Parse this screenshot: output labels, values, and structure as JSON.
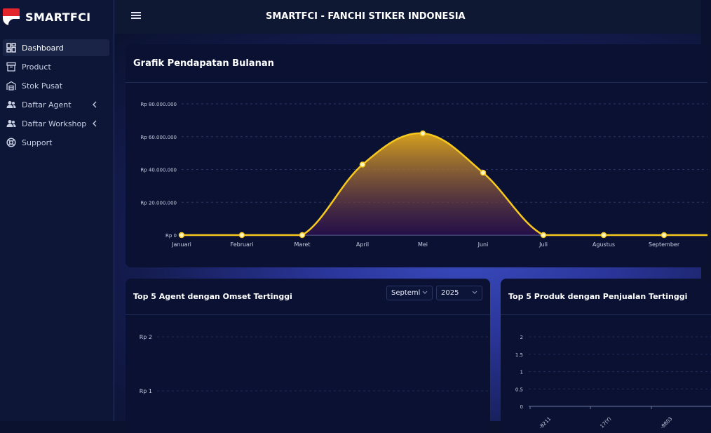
{
  "app": {
    "brand": "SMARTFCI",
    "title": "SMARTFCI - FANCHI STIKER INDONESIA"
  },
  "sidebar": {
    "items": [
      {
        "label": "Dashboard",
        "icon": "dashboard-icon"
      },
      {
        "label": "Product",
        "icon": "archive-icon"
      },
      {
        "label": "Stok Pusat",
        "icon": "warehouse-icon"
      },
      {
        "label": "Daftar Agent",
        "icon": "users-icon"
      },
      {
        "label": "Daftar Workshop",
        "icon": "users-icon"
      },
      {
        "label": "Support",
        "icon": "lifebuoy-icon"
      }
    ]
  },
  "revenue": {
    "title": "Grafik Pendapatan Bulanan"
  },
  "agent": {
    "title": "Top 5 Agent dengan Omset Tertinggi",
    "month_value": "Septeml",
    "year_value": "2025"
  },
  "product": {
    "title": "Top 5 Produk dengan Penjualan Tertinggi"
  },
  "colors": {
    "line": "#f7c81e",
    "accent": "#3a4cc0"
  },
  "chart_data": [
    {
      "type": "area",
      "title": "Grafik Pendapatan Bulanan",
      "categories": [
        "Januari",
        "Februari",
        "Maret",
        "April",
        "Mei",
        "Juni",
        "Juli",
        "Agustus",
        "September"
      ],
      "values": [
        0,
        0,
        0,
        43000000,
        62000000,
        38000000,
        0,
        0,
        0
      ],
      "yticks": [
        "Rp 0",
        "Rp 20.000.000",
        "Rp 40.000.000",
        "Rp 60.000.000",
        "Rp 80.000.000"
      ],
      "ylim": [
        0,
        80000000
      ]
    },
    {
      "type": "bar",
      "title": "Top 5 Agent dengan Omset Tertinggi",
      "yticks": [
        "Rp 2",
        "Rp 1"
      ],
      "values": []
    },
    {
      "type": "bar",
      "title": "Top 5 Produk dengan Penjualan Tertinggi",
      "yticks": [
        "2",
        "1.5",
        "1",
        "0.5",
        "0"
      ],
      "categories": [
        "-8211",
        "17(Y)",
        "-8803"
      ],
      "ylim": [
        0,
        2
      ]
    }
  ]
}
